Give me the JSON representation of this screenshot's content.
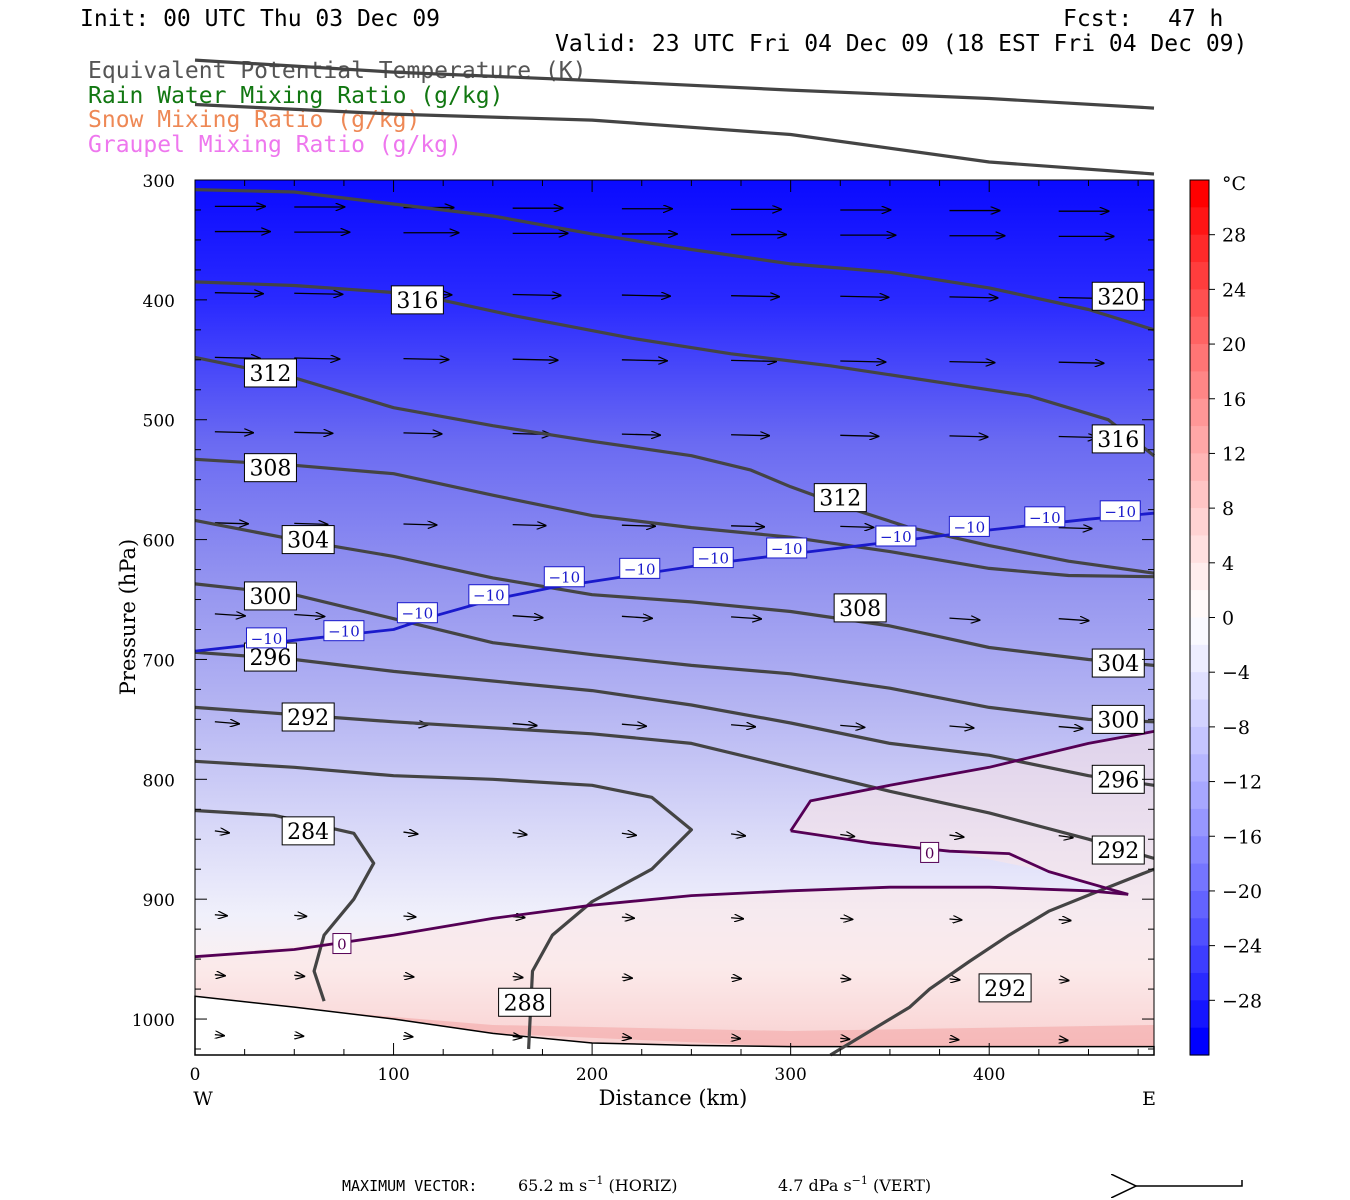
{
  "header": {
    "init": "Init: 00 UTC Thu 03 Dec 09",
    "fcst_label": "Fcst:",
    "fcst_value": "47 h",
    "valid": "Valid: 23 UTC Fri 04 Dec 09 (18 EST Fri 04 Dec 09)",
    "legend": [
      {
        "label": "Equivalent Potential Temperature (K)",
        "color": "#555555"
      },
      {
        "label": "Rain Water Mixing Ratio (g/kg)",
        "color": "#117711"
      },
      {
        "label": "Snow Mixing Ratio (g/kg)",
        "color": "#ee8855"
      },
      {
        "label": "Graupel Mixing Ratio (g/kg)",
        "color": "#ee77ee"
      }
    ]
  },
  "chart_data": {
    "type": "cross-section",
    "xlabel": "Distance (km)",
    "ylabel": "Pressure (hPa)",
    "x_range": [
      0,
      483
    ],
    "y_range": [
      1030,
      300
    ],
    "x_ticks": [
      0,
      100,
      200,
      300,
      400
    ],
    "y_ticks": [
      300,
      400,
      500,
      600,
      700,
      800,
      900,
      1000
    ],
    "x_end_labels": {
      "left": "W",
      "right": "E"
    },
    "colorbar": {
      "unit": "°C",
      "ticks": [
        28,
        24,
        20,
        16,
        12,
        8,
        4,
        0,
        -4,
        -8,
        -12,
        -16,
        -20,
        -24,
        -28
      ],
      "tick_labels": [
        "28",
        "24",
        "20",
        "16",
        "12",
        "8",
        "4",
        "0",
        "−4",
        "−8",
        "−12",
        "−16",
        "−20",
        "−24",
        "−28"
      ],
      "range": [
        -32,
        32
      ],
      "step": 2,
      "cold_color": "#0000ff",
      "warm_color": "#ff0000"
    },
    "theta_e_contours": [
      {
        "level": 320,
        "points": [
          [
            0,
            200
          ],
          [
            100,
            210
          ],
          [
            200,
            217
          ],
          [
            300,
            225
          ],
          [
            400,
            232
          ],
          [
            483,
            240
          ]
        ]
      },
      {
        "level": 320,
        "points": [
          [
            0,
            237
          ],
          [
            100,
            245
          ],
          [
            200,
            250
          ],
          [
            300,
            262
          ],
          [
            400,
            285
          ],
          [
            483,
            295
          ]
        ]
      },
      {
        "level": 316,
        "points": [
          [
            0,
            308
          ],
          [
            50,
            310
          ],
          [
            100,
            320
          ],
          [
            150,
            330
          ],
          [
            200,
            345
          ],
          [
            250,
            358
          ],
          [
            300,
            370
          ],
          [
            350,
            377
          ],
          [
            400,
            390
          ],
          [
            450,
            408
          ],
          [
            483,
            425
          ]
        ]
      },
      {
        "level": 316,
        "points": [
          [
            0,
            385
          ],
          [
            50,
            388
          ],
          [
            110,
            395
          ],
          [
            160,
            413
          ],
          [
            220,
            432
          ],
          [
            270,
            445
          ],
          [
            320,
            455
          ],
          [
            380,
            470
          ],
          [
            420,
            480
          ],
          [
            460,
            500
          ],
          [
            483,
            530
          ]
        ]
      },
      {
        "level": 312,
        "points": [
          [
            0,
            448
          ],
          [
            50,
            465
          ],
          [
            100,
            490
          ],
          [
            150,
            505
          ],
          [
            200,
            518
          ],
          [
            250,
            530
          ],
          [
            280,
            542
          ],
          [
            300,
            556
          ],
          [
            330,
            574
          ],
          [
            360,
            590
          ],
          [
            400,
            605
          ],
          [
            440,
            618
          ],
          [
            483,
            628
          ]
        ]
      },
      {
        "level": 308,
        "points": [
          [
            0,
            533
          ],
          [
            50,
            538
          ],
          [
            100,
            545
          ],
          [
            150,
            563
          ],
          [
            200,
            580
          ],
          [
            250,
            590
          ],
          [
            300,
            598
          ],
          [
            350,
            610
          ],
          [
            400,
            624
          ],
          [
            440,
            630
          ],
          [
            483,
            631
          ]
        ]
      },
      {
        "level": 304,
        "points": [
          [
            0,
            584
          ],
          [
            50,
            600
          ],
          [
            100,
            614
          ],
          [
            150,
            632
          ],
          [
            200,
            646
          ],
          [
            250,
            652
          ],
          [
            300,
            660
          ],
          [
            350,
            672
          ],
          [
            400,
            690
          ],
          [
            450,
            700
          ],
          [
            483,
            705
          ]
        ]
      },
      {
        "level": 300,
        "points": [
          [
            0,
            637
          ],
          [
            50,
            646
          ],
          [
            100,
            666
          ],
          [
            150,
            686
          ],
          [
            200,
            696
          ],
          [
            250,
            705
          ],
          [
            300,
            712
          ],
          [
            350,
            724
          ],
          [
            400,
            740
          ],
          [
            450,
            750
          ],
          [
            483,
            752
          ]
        ]
      },
      {
        "level": 296,
        "points": [
          [
            0,
            694
          ],
          [
            50,
            700
          ],
          [
            100,
            710
          ],
          [
            150,
            718
          ],
          [
            200,
            726
          ],
          [
            250,
            738
          ],
          [
            300,
            753
          ],
          [
            350,
            770
          ],
          [
            400,
            780
          ],
          [
            450,
            797
          ],
          [
            483,
            805
          ]
        ]
      },
      {
        "level": 292,
        "points": [
          [
            0,
            740
          ],
          [
            50,
            746
          ],
          [
            100,
            752
          ],
          [
            150,
            757
          ],
          [
            200,
            762
          ],
          [
            250,
            770
          ],
          [
            300,
            790
          ],
          [
            350,
            810
          ],
          [
            400,
            828
          ],
          [
            450,
            850
          ],
          [
            483,
            866
          ]
        ]
      },
      {
        "level": 288,
        "points": [
          [
            0,
            785
          ],
          [
            50,
            790
          ],
          [
            100,
            797
          ],
          [
            150,
            800
          ],
          [
            200,
            805
          ],
          [
            230,
            815
          ],
          [
            250,
            842
          ],
          [
            230,
            875
          ],
          [
            200,
            902
          ],
          [
            180,
            930
          ],
          [
            170,
            960
          ],
          [
            168,
            1025
          ]
        ]
      },
      {
        "level": 284,
        "points": [
          [
            0,
            826
          ],
          [
            40,
            830
          ],
          [
            80,
            845
          ],
          [
            90,
            870
          ],
          [
            80,
            900
          ],
          [
            65,
            930
          ],
          [
            60,
            960
          ],
          [
            65,
            985
          ]
        ]
      },
      {
        "level": 292,
        "points": [
          [
            483,
            875
          ],
          [
            460,
            890
          ],
          [
            430,
            910
          ],
          [
            410,
            930
          ],
          [
            390,
            952
          ],
          [
            370,
            975
          ],
          [
            360,
            990
          ],
          [
            320,
            1030
          ]
        ]
      }
    ],
    "theta_e_labels": [
      {
        "text": "316",
        "x": 112,
        "p": 400
      },
      {
        "text": "320",
        "x": 465,
        "p": 397
      },
      {
        "text": "312",
        "x": 38,
        "p": 461
      },
      {
        "text": "316",
        "x": 465,
        "p": 516
      },
      {
        "text": "308",
        "x": 38,
        "p": 540
      },
      {
        "text": "312",
        "x": 325,
        "p": 565
      },
      {
        "text": "304",
        "x": 57,
        "p": 600
      },
      {
        "text": "300",
        "x": 38,
        "p": 647
      },
      {
        "text": "308",
        "x": 335,
        "p": 657
      },
      {
        "text": "296",
        "x": 38,
        "p": 698
      },
      {
        "text": "304",
        "x": 465,
        "p": 703
      },
      {
        "text": "292",
        "x": 57,
        "p": 748
      },
      {
        "text": "300",
        "x": 465,
        "p": 750
      },
      {
        "text": "296",
        "x": 465,
        "p": 800
      },
      {
        "text": "284",
        "x": 57,
        "p": 843
      },
      {
        "text": "292",
        "x": 465,
        "p": 859
      },
      {
        "text": "288",
        "x": 166,
        "p": 986
      },
      {
        "text": "292",
        "x": 408,
        "p": 974
      }
    ],
    "isotherms": [
      {
        "level": -10,
        "color": "#1a1acc",
        "points": [
          [
            0,
            693
          ],
          [
            50,
            684
          ],
          [
            100,
            675
          ],
          [
            120,
            664
          ],
          [
            150,
            650
          ],
          [
            180,
            640
          ],
          [
            220,
            630
          ],
          [
            260,
            620
          ],
          [
            300,
            612
          ],
          [
            350,
            602
          ],
          [
            400,
            592
          ],
          [
            450,
            583
          ],
          [
            483,
            578
          ]
        ]
      },
      {
        "level": 0,
        "color": "#550055",
        "points": [
          [
            0,
            948
          ],
          [
            50,
            942
          ],
          [
            100,
            930
          ],
          [
            150,
            916
          ],
          [
            200,
            905
          ],
          [
            250,
            897
          ],
          [
            300,
            893
          ],
          [
            350,
            890
          ],
          [
            400,
            890
          ],
          [
            450,
            893
          ],
          [
            470,
            896
          ]
        ]
      },
      {
        "level": 0,
        "color": "#550055",
        "points": [
          [
            300,
            843
          ],
          [
            310,
            818
          ],
          [
            350,
            805
          ],
          [
            400,
            790
          ],
          [
            450,
            770
          ],
          [
            483,
            760
          ]
        ]
      },
      {
        "level": 0,
        "color": "#550055",
        "points": [
          [
            300,
            843
          ],
          [
            340,
            853
          ],
          [
            380,
            860
          ],
          [
            410,
            862
          ],
          [
            430,
            877
          ],
          [
            470,
            896
          ]
        ]
      }
    ],
    "isotherm_labels": [
      {
        "text": "−10",
        "x": 36,
        "p": 682
      },
      {
        "text": "−10",
        "x": 75,
        "p": 676
      },
      {
        "text": "−10",
        "x": 112,
        "p": 661
      },
      {
        "text": "−10",
        "x": 148,
        "p": 646
      },
      {
        "text": "−10",
        "x": 186,
        "p": 631
      },
      {
        "text": "−10",
        "x": 224,
        "p": 624
      },
      {
        "text": "−10",
        "x": 261,
        "p": 615
      },
      {
        "text": "−10",
        "x": 298,
        "p": 607
      },
      {
        "text": "−10",
        "x": 353,
        "p": 597
      },
      {
        "text": "−10",
        "x": 390,
        "p": 589
      },
      {
        "text": "−10",
        "x": 428,
        "p": 581
      },
      {
        "text": "−10",
        "x": 466,
        "p": 576
      },
      {
        "text": "0",
        "x": 74,
        "p": 937
      },
      {
        "text": "0",
        "x": 370,
        "p": 861
      }
    ],
    "terrain_p": [
      [
        0,
        981
      ],
      [
        50,
        990
      ],
      [
        100,
        1000
      ],
      [
        150,
        1012
      ],
      [
        200,
        1020
      ],
      [
        250,
        1022
      ],
      [
        300,
        1023
      ],
      [
        350,
        1023
      ],
      [
        400,
        1023
      ],
      [
        450,
        1023
      ],
      [
        483,
        1023
      ]
    ],
    "vector_rows": [
      {
        "p": 322,
        "len": 50,
        "dy": 0
      },
      {
        "p": 343,
        "len": 55,
        "dy": 0
      },
      {
        "p": 394,
        "len": 48,
        "dy": 1
      },
      {
        "p": 448,
        "len": 45,
        "dy": 1
      },
      {
        "p": 510,
        "len": 38,
        "dy": 1
      },
      {
        "p": 586,
        "len": 33,
        "dy": 1
      },
      {
        "p": 662,
        "len": 30,
        "dy": 2
      },
      {
        "p": 752,
        "len": 24,
        "dy": 2
      },
      {
        "p": 843,
        "len": 14,
        "dy": 2
      },
      {
        "p": 913,
        "len": 12,
        "dy": 1
      },
      {
        "p": 963,
        "len": 10,
        "dy": 1
      },
      {
        "p": 1013,
        "len": 9,
        "dy": 1
      }
    ],
    "vector_x": [
      10,
      50,
      105,
      160,
      215,
      270,
      325,
      380,
      435
    ]
  },
  "footer": {
    "max_vector_label": "MAXIMUM VECTOR:",
    "horiz_value": "65.2 m s",
    "horiz_sup": "−1",
    "horiz_unit": "(HORIZ)",
    "vert_value": "4.7 dPa s",
    "vert_sup": "−1",
    "vert_unit": "(VERT)"
  }
}
